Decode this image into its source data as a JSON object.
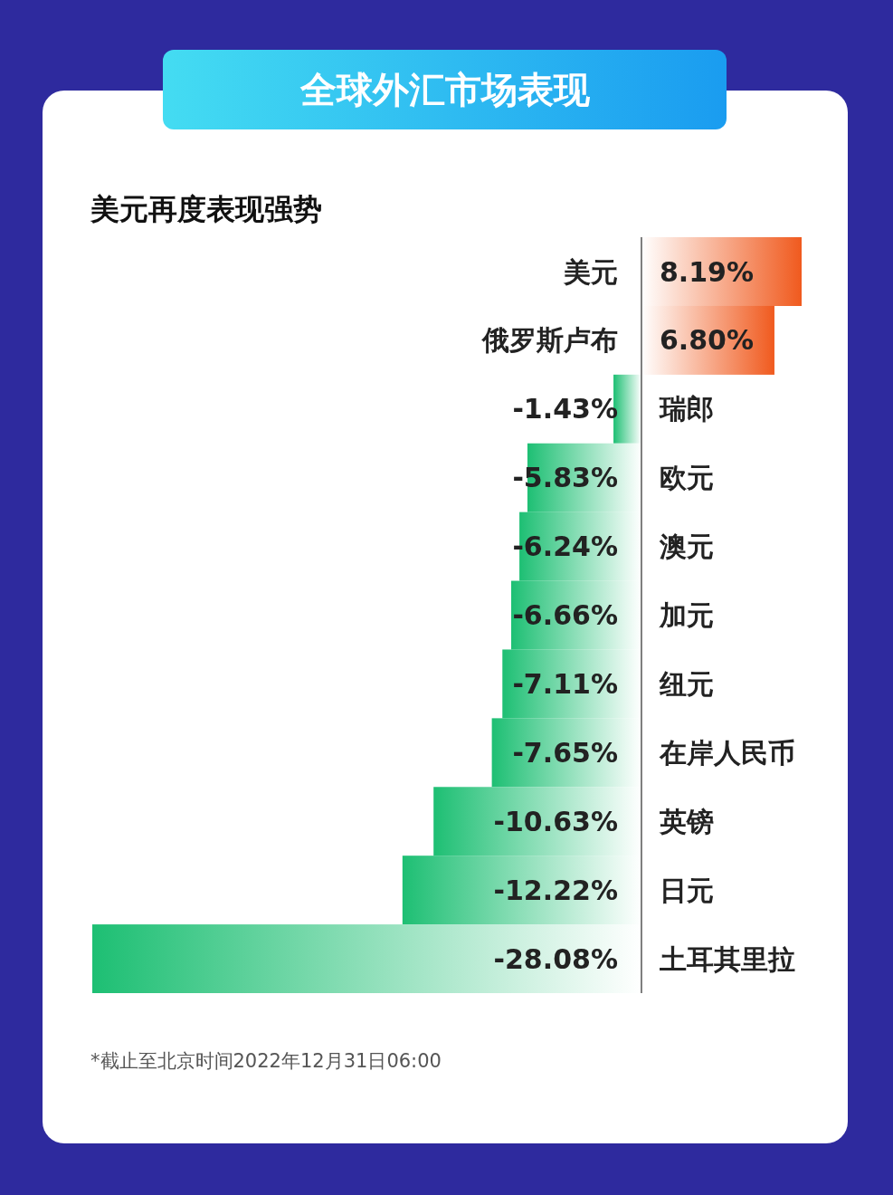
{
  "chart_data": {
    "type": "bar",
    "title": "全球外汇市场表现",
    "subtitle": "美元再度表现强势",
    "orientation": "horizontal",
    "categories": [
      "美元",
      "俄罗斯卢布",
      "瑞郎",
      "欧元",
      "澳元",
      "加元",
      "纽元",
      "在岸人民币",
      "英镑",
      "日元",
      "土耳其里拉"
    ],
    "values": [
      8.19,
      6.8,
      -1.43,
      -5.83,
      -6.24,
      -6.66,
      -7.11,
      -7.65,
      -10.63,
      -12.22,
      -28.08
    ],
    "value_labels": [
      "8.19%",
      "6.80%",
      "-1.43%",
      "-5.83%",
      "-6.24%",
      "-6.66%",
      "-7.11%",
      "-7.65%",
      "-10.63%",
      "-12.22%",
      "-28.08%"
    ],
    "colors": [
      "#f05a1e",
      "#f05a1e",
      "#1dbf73",
      "#1dbf73",
      "#1dbf73",
      "#1dbf73",
      "#1dbf73",
      "#1dbf73",
      "#1dbf73",
      "#1dbf73",
      "#1dbf73"
    ],
    "annotations": [
      "*截止至北京时间2022年12月31日06:00"
    ]
  }
}
